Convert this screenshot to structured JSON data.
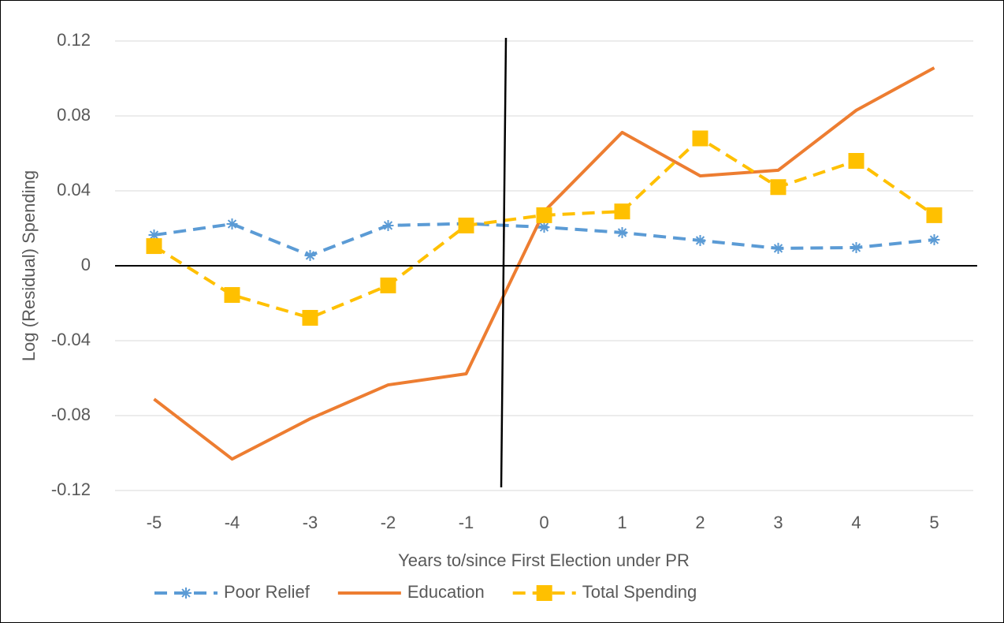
{
  "chart_data": {
    "type": "line",
    "x_label": "Years to/since First Election under PR",
    "y_label": "Log (Residual) Spending",
    "categories": [
      "-5",
      "-4",
      "-3",
      "-2",
      "-1",
      "0",
      "1",
      "2",
      "3",
      "4",
      "5"
    ],
    "series": [
      {
        "name": "Poor Relief",
        "color": "#5b9bd5",
        "dash": true,
        "marker": "star",
        "values": [
          0.0164,
          0.0223,
          0.0055,
          0.0215,
          0.0225,
          0.0206,
          0.0177,
          0.0135,
          0.0093,
          0.0097,
          0.0139
        ]
      },
      {
        "name": "Education",
        "color": "#ed7d31",
        "dash": false,
        "marker": "none",
        "values": [
          -0.0712,
          -0.1032,
          -0.0817,
          -0.0636,
          -0.0577,
          0.029,
          0.0712,
          0.048,
          0.051,
          0.083,
          0.1057
        ]
      },
      {
        "name": "Total Spending",
        "color": "#ffc000",
        "dash": true,
        "marker": "square",
        "values": [
          0.0105,
          -0.0156,
          -0.0278,
          -0.0105,
          0.0215,
          0.027,
          0.029,
          0.068,
          0.042,
          0.056,
          0.027
        ]
      }
    ],
    "ylim": [
      -0.12,
      0.12
    ],
    "yticks": [
      0.12,
      0.08,
      0.04,
      0,
      -0.04,
      -0.08,
      -0.12
    ],
    "grid": true,
    "legend": "bottom"
  }
}
